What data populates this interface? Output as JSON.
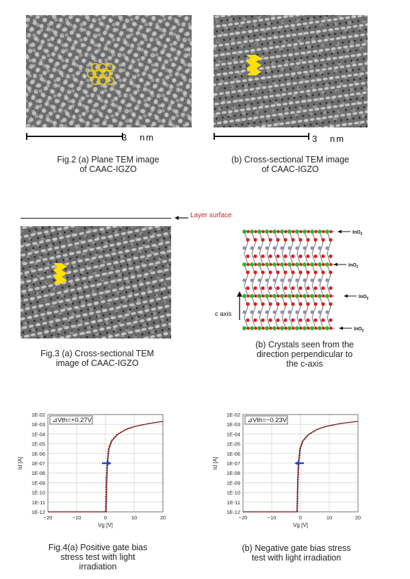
{
  "fig2": {
    "scale_a": "3   nm",
    "scale_b": "3   nm",
    "caption_a_line1": "Fig.2 (a) Plane TEM image",
    "caption_a_line2": "of CAAC-IGZO",
    "caption_b_line1": "(b) Cross-sectional TEM image",
    "caption_b_line2": "of CAAC-IGZO"
  },
  "fig3": {
    "layer_surface": "Layer surface",
    "caption_a_line1": "Fig.3 (a) Cross-sectional TEM",
    "caption_a_line2": "image of CAAC-IGZO",
    "caption_b_line1": "(b) Crystals seen from the",
    "caption_b_line2": "direction perpendicular to",
    "caption_b_line3": "the c-axis",
    "c_axis": "c axis",
    "ino2_labels": [
      "InO",
      "InO",
      "InO",
      "InO"
    ],
    "ino2_subscript": "2"
  },
  "fig4": {
    "caption_a_line1": "Fig.4(a) Positive gate bias",
    "caption_a_line2": "stress test with light",
    "caption_a_line3": "irradiation",
    "caption_b_line1": "(b)   Negative gate bias stress",
    "caption_b_line2": "test with light irradiation"
  },
  "colors": {
    "curve": "#8b1a1a",
    "arrow_blue": "#1f3fc4",
    "arrow_yellow": "#ffe000",
    "hex_yellow": "#f2d000",
    "atom_red": "#d42020",
    "atom_green": "#2fb52f",
    "atom_gray": "#8f8fa8"
  },
  "chart_data": [
    {
      "type": "line",
      "xlabel": "Vg [V]",
      "ylabel": "Id [A]",
      "xlim": [
        -20,
        20
      ],
      "xticks": [
        "−20",
        "−10",
        "0",
        "10",
        "20"
      ],
      "yscale": "log",
      "yticks": [
        "1E-02",
        "1E-03",
        "1E-04",
        "1E-05",
        "1E-06",
        "1E-07",
        "1E-08",
        "1E-09",
        "1E-10",
        "1E-11",
        "1E-12"
      ],
      "annotation": "⊿Vth=+0.27V",
      "shift_direction": "right",
      "series": [
        {
          "x": [
            -20,
            -5,
            0,
            0.2,
            0.5,
            1,
            2,
            4,
            7,
            10,
            15,
            20
          ],
          "y": [
            1e-12,
            1e-12,
            1e-12,
            1e-09,
            1e-07,
            3e-06,
            2e-05,
            9e-05,
            0.0003,
            0.0006,
            0.0012,
            0.002
          ]
        },
        {
          "x": [
            -20,
            -5,
            0.27,
            0.47,
            0.77,
            1.27,
            2.27,
            4.27,
            7.27,
            10.27,
            15.27,
            20
          ],
          "y": [
            1e-12,
            1e-12,
            1e-12,
            1e-09,
            1e-07,
            3e-06,
            2e-05,
            9e-05,
            0.0003,
            0.0006,
            0.0012,
            0.002
          ]
        }
      ]
    },
    {
      "type": "line",
      "xlabel": "Vg [V]",
      "ylabel": "Id [A]",
      "xlim": [
        -20,
        20
      ],
      "xticks": [
        "−20",
        "−10",
        "0",
        "10",
        "20"
      ],
      "yscale": "log",
      "yticks": [
        "1E-02",
        "1E-03",
        "1E-04",
        "1E-05",
        "1E-06",
        "1E-07",
        "1E-08",
        "1E-09",
        "1E-10",
        "1E-11",
        "1E-12"
      ],
      "annotation": "⊿Vth=−0.23V",
      "shift_direction": "left",
      "series": [
        {
          "x": [
            -20,
            -5,
            -1,
            -0.8,
            -0.5,
            0,
            1,
            3,
            6,
            9,
            14,
            20
          ],
          "y": [
            1e-12,
            1e-12,
            1e-12,
            1e-09,
            1e-07,
            3e-06,
            2e-05,
            9e-05,
            0.0003,
            0.0006,
            0.0012,
            0.002
          ]
        },
        {
          "x": [
            -20,
            -5,
            -1.23,
            -1.03,
            -0.73,
            -0.23,
            0.77,
            2.77,
            5.77,
            8.77,
            13.77,
            20
          ],
          "y": [
            1e-12,
            1e-12,
            1e-12,
            1e-09,
            1e-07,
            3e-06,
            2e-05,
            9e-05,
            0.0003,
            0.0006,
            0.0012,
            0.002
          ]
        }
      ]
    }
  ]
}
